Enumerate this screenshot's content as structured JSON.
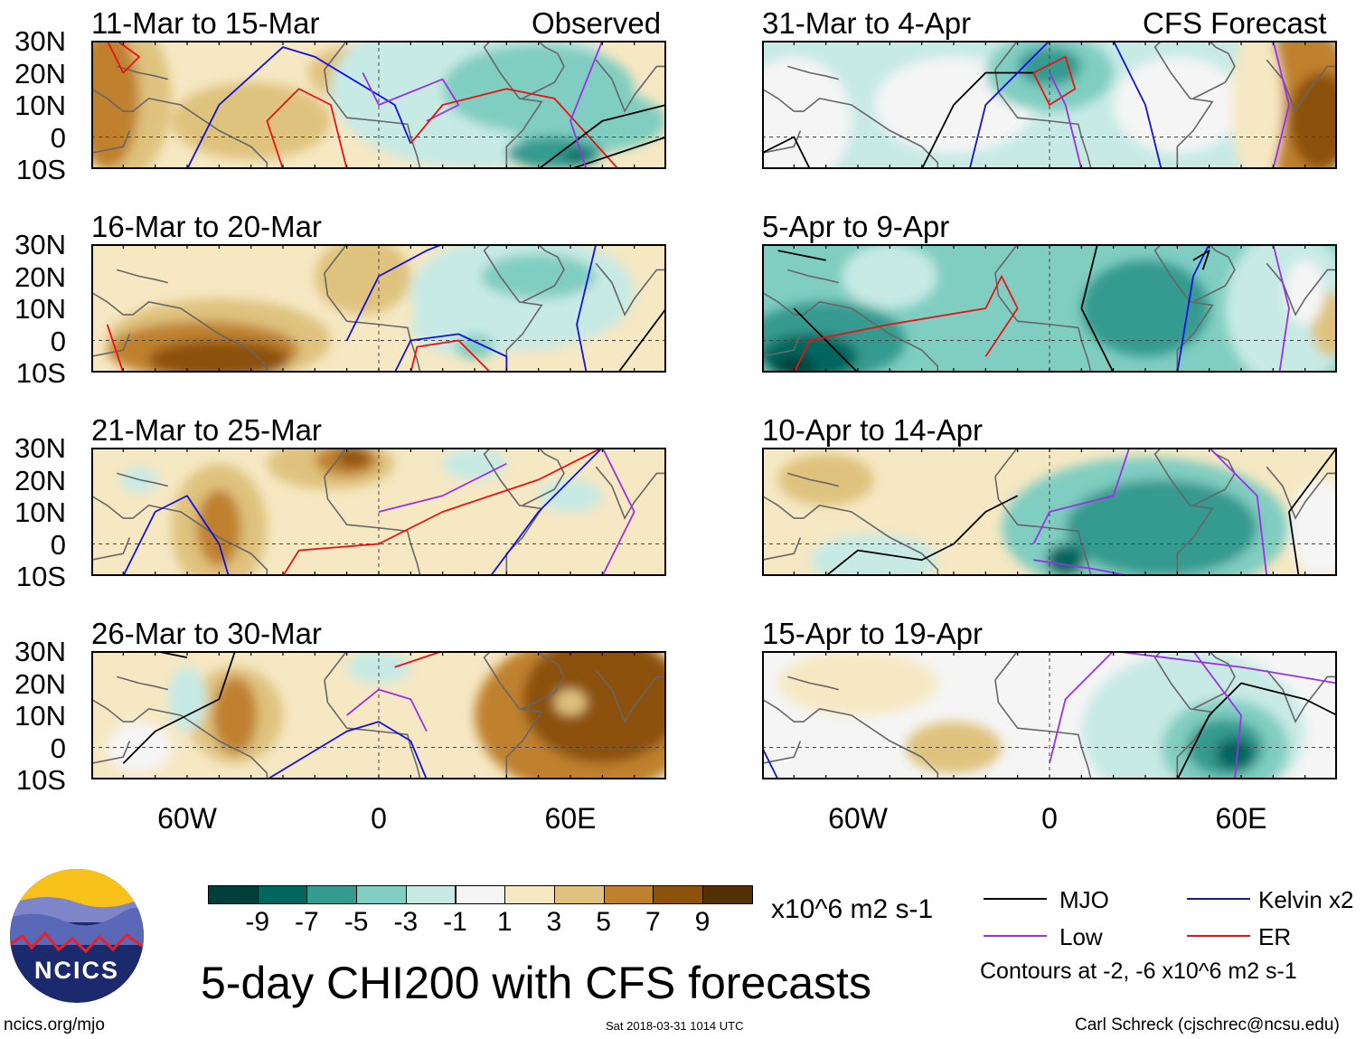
{
  "figure_title": "5-day CHI200 with CFS forecasts",
  "column_labels": {
    "left": "Observed",
    "right": "CFS Forecast"
  },
  "panels": {
    "left": [
      {
        "title": "11-Mar to 15-Mar"
      },
      {
        "title": "16-Mar to 20-Mar"
      },
      {
        "title": "21-Mar to 25-Mar"
      },
      {
        "title": "26-Mar to 30-Mar"
      }
    ],
    "right": [
      {
        "title": "31-Mar to 4-Apr"
      },
      {
        "title": "5-Apr to 9-Apr"
      },
      {
        "title": "10-Apr to 14-Apr"
      },
      {
        "title": "15-Apr to 19-Apr"
      }
    ]
  },
  "lat_ticks": [
    "30N",
    "20N",
    "10N",
    "0",
    "10S"
  ],
  "lon_ticks": [
    "60W",
    "0",
    "60E"
  ],
  "colorbar": {
    "colors": [
      "#01403a",
      "#03665e",
      "#359a8f",
      "#80cdc1",
      "#c7eae5",
      "#f5f5f5",
      "#f6e8c3",
      "#dfc27d",
      "#bf812d",
      "#8c510a",
      "#543005"
    ],
    "labels": [
      "-9",
      "-7",
      "-5",
      "-3",
      "-1",
      "1",
      "3",
      "5",
      "7",
      "9"
    ],
    "units": "x10^6 m2 s-1"
  },
  "legend": {
    "items": [
      {
        "label": "MJO",
        "color": "#000000"
      },
      {
        "label": "Kelvin x2",
        "color": "#1010e0"
      },
      {
        "label": "Low",
        "color": "#9a30e8"
      },
      {
        "label": "ER",
        "color": "#ee1010"
      }
    ],
    "note": "Contours at -2, -6 x10^6 m2 s-1"
  },
  "logo": {
    "text": "NCICS"
  },
  "footer": {
    "url": "ncics.org/mjo",
    "timestamp": "Sat 2018-03-31 1014 UTC",
    "credit": "Carl Schreck (cjschrec@ncsu.edu)"
  }
}
